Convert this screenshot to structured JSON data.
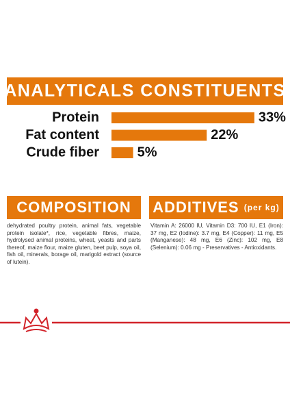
{
  "chart_data": {
    "type": "bar",
    "orientation": "horizontal",
    "title": "ANALYTICALS CONSTITUENTS",
    "categories": [
      "Protein",
      "Fat content",
      "Crude fiber"
    ],
    "values": [
      33,
      22,
      5
    ],
    "value_labels": [
      "33%",
      "22%",
      "5%"
    ],
    "color": "#e5780c"
  },
  "composition": {
    "title": "COMPOSITION",
    "text": "dehydrated poultry protein, animal fats, vegetable protein isolate*, rice, vegetable fibres, maize, hydrolysed animal proteins, wheat, yeasts and parts thereof, maize flour, maize gluten, beet pulp, soya oil, fish oil, minerals, borage oil, marigold extract (source of lutein)."
  },
  "additives": {
    "title": "ADDITIVES",
    "subtitle": "(per kg)",
    "text": "Vitamin A: 26000 IU, Vitamin D3: 700 IU, E1 (Iron): 37 mg, E2 (Iodine): 3.7 mg, E4 (Copper): 11 mg, E5 (Manganese): 48 mg, E6 (Zinc): 102 mg, E8 (Selenium): 0.06 mg - Preservatives - Antioxidants."
  }
}
